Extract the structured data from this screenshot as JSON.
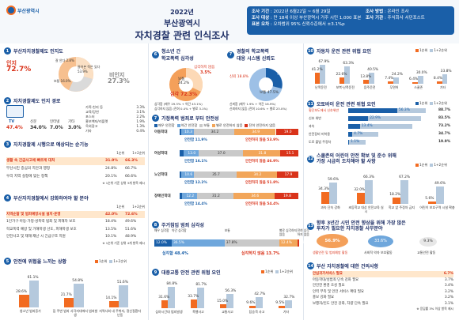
{
  "header": {
    "logo_text": "부산광역시",
    "year": "2022년",
    "title1": "부산광역시",
    "title2": "자치경찰 관련 인식조사",
    "meta": [
      {
        "k": "조사 기간",
        "v": "2022년 6월22일 ~ 6월 29일"
      },
      {
        "k": "조사 대상",
        "v": "만 18세 이상 부산광역시 거주 시민 1,000 표본"
      },
      {
        "k": "표본 오차",
        "v": "오차범위 95% 신뢰수준에서 ±3.1%p"
      }
    ],
    "meta2": [
      {
        "k": "조사 방법",
        "v": "온라인 조사"
      },
      {
        "k": "조사 기관",
        "v": "주식회사 서던포스트"
      }
    ]
  },
  "s1": {
    "title": "부산자치경찰제도 인지도",
    "aware_label": "인지",
    "aware_value": "72.7%",
    "unaware_label": "비인지",
    "unaware_value": "27.3%",
    "pie": [
      {
        "label": "잘 안다",
        "value": "2.8%"
      },
      {
        "label": "들어본 적은 있다",
        "value": "53.9%"
      },
      {
        "label": "보통",
        "value": "16.0%"
      },
      {
        "label": "모름",
        "value": "27.3%"
      }
    ]
  },
  "s2": {
    "title": "자치경찰제도 인지 경로",
    "tv": "TV",
    "tv_v": "47.4%",
    "paper": "신문",
    "paper_v": "34.0%",
    "inet": "인터넷",
    "inet_v": "7.0%",
    "etc": "기타",
    "etc_v": "3.0%",
    "items": [
      {
        "l": "가족·친지 등",
        "v": "3.3%"
      },
      {
        "l": "교육/강연",
        "v": "3.1%"
      },
      {
        "l": "포스터",
        "v": "2.2%"
      },
      {
        "l": "홍보책자/리플렛",
        "v": "1.9%"
      },
      {
        "l": "옥외광고",
        "v": "1.3%"
      },
      {
        "l": "기타",
        "v": "0.4%"
      }
    ]
  },
  "s3": {
    "title": "자치경찰제 시행으로 예상되는 순기능",
    "legend1": "1순위",
    "legend2": "1+2순위",
    "rows": [
      {
        "l": "생활 속 긴급사고에 빠르게 대처",
        "a": "31.9%",
        "b": "66.3%"
      },
      {
        "l": "부산시민 중심의 치안과 행정",
        "a": "24.8%",
        "b": "66.7%"
      },
      {
        "l": "우리 지역 실정에 맞는 정책",
        "a": "20.1%",
        "b": "66.6%"
      }
    ],
    "note": "※ 1순위 기준 상위 3개 항목 제시"
  },
  "s4": {
    "title": "부산자치경찰에서 강화하여야 할 분야",
    "legend1": "1순위",
    "legend2": "1+2순위",
    "rows": [
      {
        "l": "지역순찰 및 범죄예방시설 설치·운영",
        "a": "42.0%",
        "b": "72.6%"
      },
      {
        "l": "1인가구·아동·가정·성폭력 범죄 및 피해자 보호",
        "a": "18.4%",
        "b": "49.6%"
      },
      {
        "l": "학교폭력 예방 및 가해학생 선도, 피해학생 보호",
        "a": "13.5%",
        "b": "51.6%"
      },
      {
        "l": "안전사고 및 재해·재난 시 긴급구조 지원",
        "a": "10.1%",
        "b": "48.9%"
      }
    ],
    "note": "※ 1순위 기준 상위 4개 항목 제시"
  },
  "s5": {
    "title": "안전에 위협을 느끼는 상황",
    "legend1": "1순위",
    "legend2": "1+2순위",
    "bars": [
      {
        "l": "청소년 범죄증가",
        "a": "28.6%",
        "b": "61.1%"
      },
      {
        "l": "집 주변 범죄 사각지대에서 범죄발생",
        "a": "21.7%",
        "b": "54.8%"
      },
      {
        "l": "지역사회 내 주취자, 정신질환자 난동",
        "a": "14.1%",
        "b": "51.6%"
      }
    ],
    "note": "※ 1순위 기준 상위 3개 항목 제시"
  },
  "s6": {
    "title1": "청소년 간",
    "title2": "학교폭력 심각성",
    "serious_label": "심각하지 않음",
    "serious_v": "3.5%",
    "normal": "보통",
    "normal_v": "24.2%",
    "very": "심각",
    "very_v": "72.3%",
    "note1": "심각함 (매우 29.3% + 약간 43.1%)",
    "note2": "심각하지 않음 (전혀 0.4% + 별로 3.1%)"
  },
  "s7": {
    "title1": "경찰의 학교폭력",
    "title2": "대응 시스템 신뢰도",
    "dist": "불신",
    "dist_v": "33.7%",
    "normal": "보통",
    "normal_v": "47.5%",
    "trust": "신뢰",
    "trust_v": "18.8%",
    "note1": "신뢰함 (매우 1.9% + 약간 16.9%)",
    "note2": "신뢰하지 않음 (전혀 10.6% + 별로 23.0%)"
  },
  "s8": {
    "title": "가정폭력 범죄로 부터 안전성",
    "legend": [
      {
        "l": "매우 안전함",
        "c": "#1a5fa8"
      },
      {
        "l": "약간 안전함",
        "c": "#6fa7dc"
      },
      {
        "l": "보통",
        "c": "#c9c9c9"
      },
      {
        "l": "별로 안전하지 않음",
        "c": "#f2a65a"
      },
      {
        "l": "전혀 안전하지 않음",
        "c": "#d9331a"
      }
    ],
    "rows": [
      {
        "l": "아동학대",
        "s": [
          1.6,
          10.3,
          34.2,
          34.9,
          19.0
        ],
        "safe": "안전함 11.9%",
        "unsafe": "안전하지 않음 53.9%"
      },
      {
        "l": "여성학대",
        "s": [
          3.1,
          13.0,
          37.0,
          31.8,
          15.1
        ],
        "safe": "안전함 16.1%",
        "unsafe": "안전하지 않음 46.9%"
      },
      {
        "l": "노인학대",
        "s": [
          1.6,
          10.6,
          35.7,
          34.2,
          17.9
        ],
        "safe": "안전함 12.2%",
        "unsafe": "안전하지 않음 51.8%"
      },
      {
        "l": "장애인학대",
        "s": [
          2.2,
          12.2,
          31.2,
          34.6,
          19.8
        ],
        "safe": "안전함 14.4%",
        "unsafe": "안전하지 않음 54.4%"
      }
    ]
  },
  "s9": {
    "title": "주거침입 범죄 심각성",
    "cats": [
      {
        "l": "매우 심각함",
        "v": "12.0%"
      },
      {
        "l": "약간 심각함",
        "v": "36.5%"
      },
      {
        "l": "보통",
        "v": "37.8%"
      },
      {
        "l": "별로 심각하지 않음",
        "v": "12.4%"
      },
      {
        "l": "전혀 심각하지 않음",
        "v": "1.3%"
      }
    ],
    "serious": "심각함 48.4%",
    "not": "심각하지 않음 13.7%"
  },
  "s10": {
    "title": "대중교통 안전 관련 위협 요인",
    "legend1": "1순위",
    "legend2": "1+2순위",
    "bars": [
      {
        "l": "심야시간대 범죄발생",
        "a": "31.6%",
        "b": "84.8%"
      },
      {
        "l": "폭행사고",
        "a": "33.7%",
        "b": "81.7%"
      },
      {
        "l": "교통사고",
        "a": "15.0%",
        "b": "56.3%"
      },
      {
        "l": "탑승객 사고",
        "a": "9.6%",
        "b": "42.7%"
      },
      {
        "l": "기타",
        "a": "9.5%",
        "b": "32.7%"
      }
    ]
  },
  "s11": {
    "title": "자동차 운전 관련 위협 요인",
    "legend1": "1순위",
    "legend2": "1+2순위",
    "bars": [
      {
        "l": "난폭운전",
        "a": "41.2%",
        "b": "67.9%"
      },
      {
        "l": "보복·난폭운전",
        "a": "22.6%",
        "b": "63.3%"
      },
      {
        "l": "음주운전",
        "a": "13.8%",
        "b": "40.5%"
      },
      {
        "l": "무면허",
        "a": "7.4%",
        "b": "24.2%"
      },
      {
        "l": "스쿨존",
        "a": "6.4%",
        "b": "30.0%"
      },
      {
        "l": "기타",
        "a": "8.4%",
        "b": "33.8%"
      }
    ]
  },
  "s12": {
    "title": "오토바이 운전 관련 위협 요인",
    "legend1": "1순위",
    "legend2": "1+2순위",
    "rows": [
      {
        "l": "횡단보도에서 신호위반",
        "a": "56.3%",
        "b": "88.7%"
      },
      {
        "l": "신호 위반",
        "a": "22.9%",
        "b": "83.5%"
      },
      {
        "l": "과속",
        "a": "13.4%",
        "b": "73.2%"
      },
      {
        "l": "안전장비 미착용",
        "a": "4.7%",
        "b": "34.7%"
      },
      {
        "l": "도로 불법 주정차",
        "a": "1.1%",
        "b": "19.9%"
      }
    ]
  },
  "s13": {
    "title": "스쿨존의 어린이 안전 확보 및 준수 위해",
    "title2": "가장 시급히 조치해야 할 사항",
    "legend1": "1순위",
    "legend2": "1+2순위",
    "bars": [
      {
        "l": "과속 단속 강화",
        "a": "34.3%",
        "b": "59.6%"
      },
      {
        "l": "초등학교 대상 안전교육 실시",
        "a": "32.0%",
        "b": "66.3%"
      },
      {
        "l": "학교 앞 주정차 금지",
        "a": "18.2%",
        "b": "67.2%"
      },
      {
        "l": "어린이 보호구역 시설 확충",
        "a": "5.6%",
        "b": "49.6%"
      }
    ]
  },
  "s14": {
    "title": "향후 3년간 시민 안전 향상을 위해 가장 많은",
    "title2": "투자가 필요한 자치경찰 사무분야",
    "items": [
      {
        "l": "생활안전 및 범죄예방 활동",
        "v": "56.9%"
      },
      {
        "l": "사회적 약자 보호활동",
        "v": "33.6%"
      },
      {
        "l": "교통안전 활동",
        "v": "9.3%"
      }
    ]
  },
  "s15": {
    "title": "부산 자치경찰에 대한 건의사항",
    "items": [
      {
        "l": "안심귀가서비스 필요",
        "v": "6.7%"
      },
      {
        "l": "아동학대/성범죄 단속 강화 필요",
        "v": "3.7%"
      },
      {
        "l": "안전한 환경 조성 필요",
        "v": "3.4%"
      },
      {
        "l": "인력 부족 및 안전 서비스 확대 필요",
        "v": "3.2%"
      },
      {
        "l": "홍보 강화 필요",
        "v": "3.2%"
      },
      {
        "l": "보행자/인도 안전 강화, 차량 단속 필요",
        "v": "3.1%"
      }
    ],
    "note": "※ 응답률 3% 이상 항목 제시"
  }
}
